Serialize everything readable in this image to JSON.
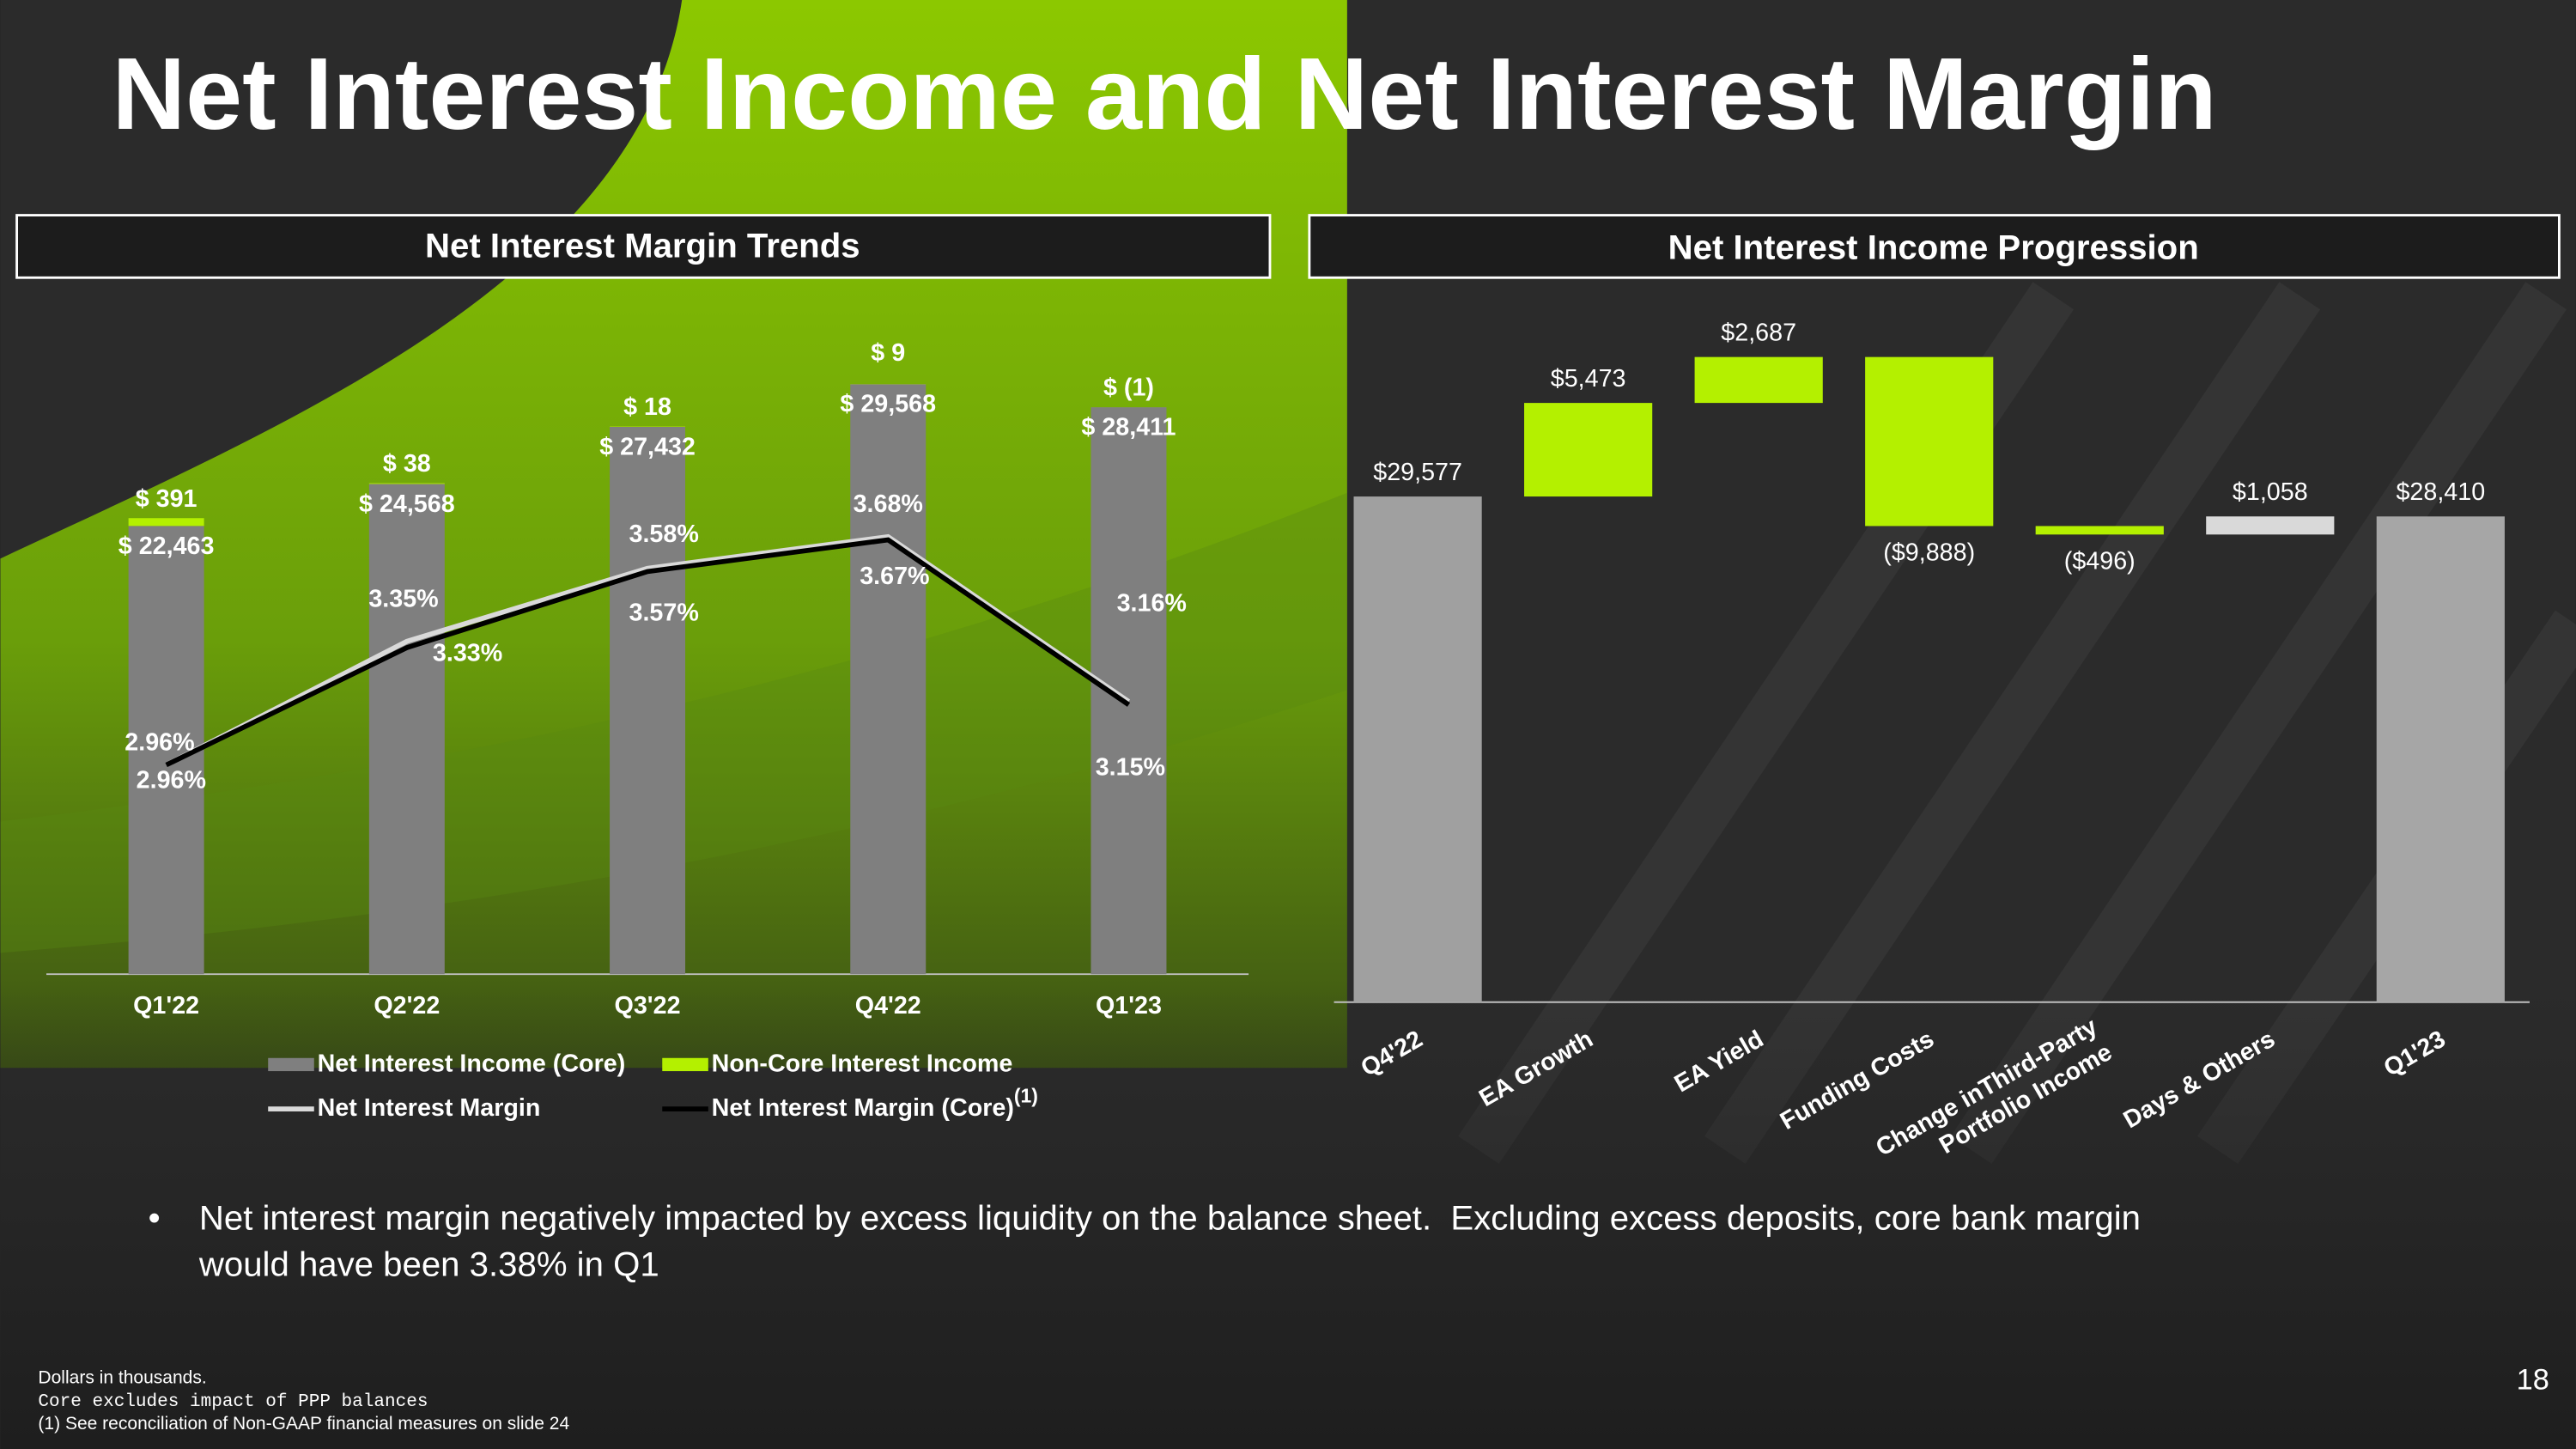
{
  "title": "Net Interest Income and Net Interest Margin",
  "chart_data": [
    {
      "type": "bar",
      "title": "Net Interest Margin Trends",
      "categories": [
        "Q1'22",
        "Q2'22",
        "Q3'22",
        "Q4'22",
        "Q1'23"
      ],
      "ylim": [
        0,
        34000
      ],
      "y2lim": [
        2.3,
        4.44
      ],
      "series": [
        {
          "name": "Net Interest Income (Core)",
          "color": "#7f7f7f",
          "values": [
            22463,
            24568,
            27432,
            29568,
            28411
          ],
          "value_labels": [
            "$ 22,463",
            "$ 24,568",
            "$ 27,432",
            "$ 29,568",
            "$ 28,411"
          ]
        },
        {
          "name": "Non-Core Interest Income",
          "color": "#b4f000",
          "values": [
            391,
            38,
            18,
            9,
            -1
          ],
          "value_labels": [
            "$ 391",
            "$ 38",
            "$ 18",
            "$ 9",
            "$ (1)"
          ]
        },
        {
          "name": "Net Interest Margin",
          "type": "line",
          "axis": "y2",
          "color": "#d9d9d9",
          "values": [
            2.96,
            3.35,
            3.58,
            3.68,
            3.16
          ],
          "value_labels": [
            "2.96%",
            "3.35%",
            "3.58%",
            "3.68%",
            "3.16%"
          ]
        },
        {
          "name": "Net Interest Margin (Core)",
          "superscript": "(1)",
          "type": "line",
          "axis": "y2",
          "color": "#000000",
          "values": [
            2.96,
            3.33,
            3.57,
            3.67,
            3.15
          ],
          "value_labels": [
            "2.96%",
            "3.33%",
            "3.57%",
            "3.67%",
            "3.15%"
          ]
        }
      ]
    },
    {
      "type": "waterfall",
      "title": "Net Interest Income Progression",
      "categories": [
        "Q4'22",
        "EA Growth",
        "EA Yield",
        "Funding Costs",
        "Change inThird-Party\nPortfolio Income",
        "Days & Others",
        "Q1'23"
      ],
      "values": [
        29577,
        5473,
        2687,
        -9888,
        -496,
        1058,
        28410
      ],
      "value_labels": [
        "$29,577",
        "$5,473",
        "$2,687",
        "($9,888)",
        "($496)",
        "$1,058",
        "$28,410"
      ],
      "is_total": [
        true,
        false,
        false,
        false,
        false,
        false,
        true
      ],
      "colors": [
        "#a0a0a0",
        "#b4f000",
        "#b4f000",
        "#b4f000",
        "#b4f000",
        "#d9d9d9",
        "#a6a6a6"
      ],
      "ylim": [
        0,
        39400
      ]
    }
  ],
  "bullets": [
    [
      "Net interest margin negatively impacted by excess liquidity on the balance sheet.  Excluding excess deposits, core bank margin",
      "would have been 3.38% in Q1"
    ]
  ],
  "footnotes": [
    "Dollars in thousands.",
    "Core excludes impact of PPP balances",
    "(1) See reconciliation of Non-GAAP financial measures on slide 24"
  ],
  "page_number": "18"
}
